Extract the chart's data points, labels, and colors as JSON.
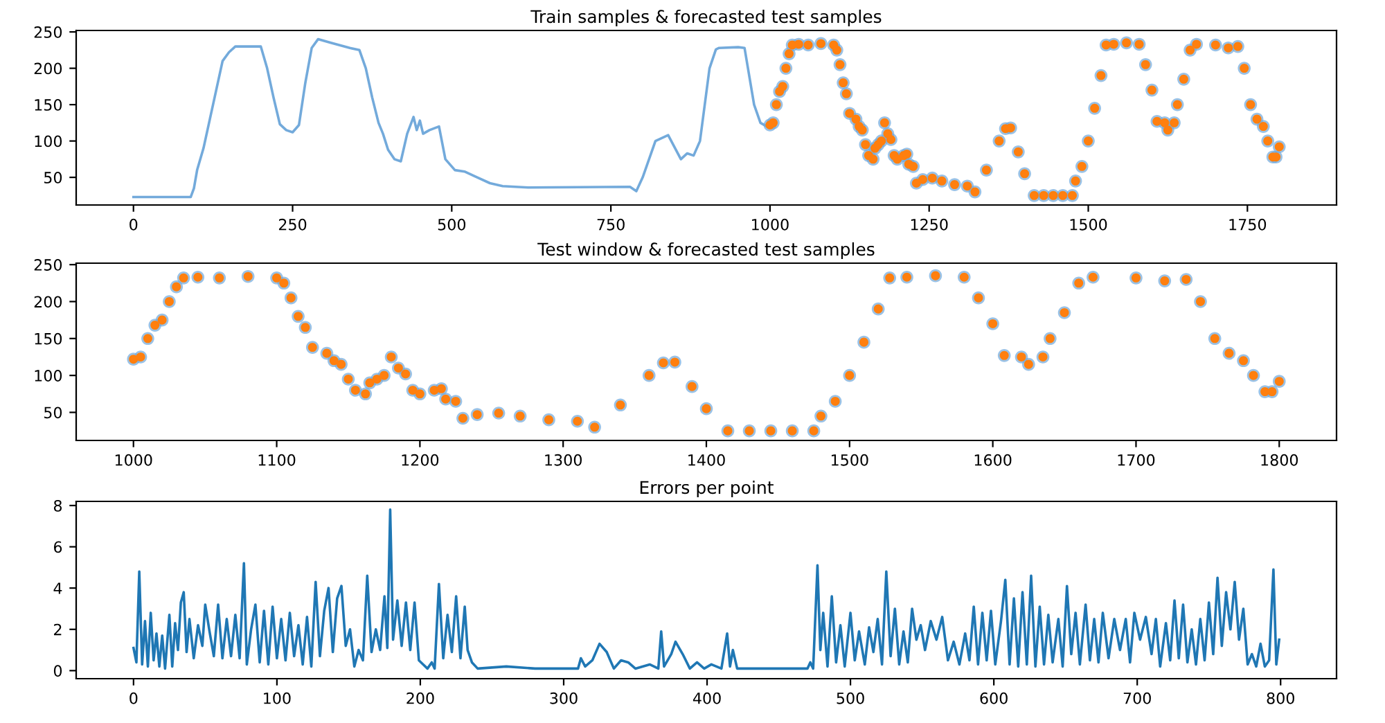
{
  "chart_data": [
    {
      "type": "line",
      "title": "Train samples & forecasted test samples",
      "xlim": [
        -90,
        1890
      ],
      "xticks": [
        0,
        250,
        500,
        750,
        1000,
        1250,
        1500,
        1750
      ],
      "ylim": [
        12,
        252
      ],
      "yticks": [
        50,
        100,
        150,
        200,
        250
      ],
      "grid": false,
      "series": [
        {
          "color": "#5b9bd5",
          "x": [
            0,
            90,
            95,
            100,
            110,
            120,
            130,
            140,
            150,
            160,
            200,
            210,
            220,
            230,
            240,
            250,
            260,
            270,
            280,
            290,
            310,
            340,
            355,
            365,
            375,
            385,
            392,
            400,
            410,
            420,
            430,
            440,
            445,
            450,
            455,
            465,
            480,
            490,
            505,
            520,
            540,
            560,
            580,
            620,
            780,
            790,
            800,
            820,
            840,
            860,
            870,
            880,
            890,
            905,
            915,
            920,
            950,
            960,
            975,
            985,
            995,
            1000
          ],
          "values": [
            23,
            23,
            35,
            60,
            90,
            130,
            170,
            210,
            222,
            230,
            230,
            200,
            160,
            123,
            115,
            112,
            122,
            180,
            228,
            240,
            235,
            228,
            225,
            200,
            160,
            125,
            110,
            88,
            75,
            72,
            110,
            133,
            115,
            128,
            110,
            115,
            120,
            75,
            60,
            58,
            50,
            42,
            38,
            36,
            37,
            31,
            50,
            100,
            108,
            75,
            83,
            80,
            100,
            200,
            226,
            228,
            229,
            228,
            150,
            125,
            120,
            122
          ]
        },
        {
          "type": "scatter",
          "color": "#6fa8dc",
          "marker": "circle",
          "x": [
            1000,
            1005,
            1010,
            1015,
            1020,
            1025,
            1030,
            1035,
            1045,
            1060,
            1080,
            1100,
            1105,
            1110,
            1115,
            1120,
            1125,
            1135,
            1140,
            1145,
            1150,
            1155,
            1162,
            1165,
            1170,
            1175,
            1180,
            1185,
            1190,
            1195,
            1200,
            1210,
            1215,
            1218,
            1225,
            1230,
            1240,
            1255,
            1270,
            1290,
            1310,
            1322,
            1340,
            1360,
            1370,
            1378,
            1390,
            1400,
            1415,
            1430,
            1445,
            1460,
            1475,
            1480,
            1490,
            1500,
            1510,
            1520,
            1528,
            1540,
            1560,
            1580,
            1590,
            1600,
            1608,
            1620,
            1625,
            1635,
            1640,
            1650,
            1660,
            1670,
            1700,
            1720,
            1735,
            1745,
            1755,
            1765,
            1775,
            1782,
            1790,
            1795,
            1800
          ],
          "values": [
            122,
            125,
            150,
            168,
            175,
            200,
            220,
            232,
            233,
            232,
            234,
            232,
            225,
            205,
            180,
            165,
            138,
            130,
            120,
            115,
            95,
            80,
            75,
            90,
            95,
            100,
            125,
            110,
            102,
            80,
            75,
            80,
            82,
            68,
            65,
            42,
            47,
            49,
            45,
            40,
            38,
            30,
            60,
            100,
            117,
            118,
            85,
            55,
            25,
            25,
            25,
            25,
            25,
            45,
            65,
            100,
            145,
            190,
            232,
            233,
            235,
            233,
            205,
            170,
            127,
            125,
            115,
            125,
            150,
            185,
            225,
            233,
            232,
            228,
            230,
            200,
            150,
            130,
            120,
            100,
            78,
            78,
            92
          ]
        },
        {
          "type": "scatter",
          "color": "#ff7f0e",
          "marker": "circle",
          "x": [
            1000,
            1005,
            1010,
            1015,
            1020,
            1025,
            1030,
            1035,
            1045,
            1060,
            1080,
            1100,
            1105,
            1110,
            1115,
            1120,
            1125,
            1135,
            1140,
            1145,
            1150,
            1155,
            1162,
            1165,
            1170,
            1175,
            1180,
            1185,
            1190,
            1195,
            1200,
            1210,
            1215,
            1218,
            1225,
            1230,
            1240,
            1255,
            1270,
            1290,
            1310,
            1322,
            1340,
            1360,
            1370,
            1378,
            1390,
            1400,
            1415,
            1430,
            1445,
            1460,
            1475,
            1480,
            1490,
            1500,
            1510,
            1520,
            1528,
            1540,
            1560,
            1580,
            1590,
            1600,
            1608,
            1620,
            1625,
            1635,
            1640,
            1650,
            1660,
            1670,
            1700,
            1720,
            1735,
            1745,
            1755,
            1765,
            1775,
            1782,
            1790,
            1795,
            1800
          ],
          "values": [
            122,
            125,
            150,
            168,
            175,
            200,
            220,
            232,
            233,
            232,
            234,
            232,
            225,
            205,
            180,
            165,
            138,
            130,
            120,
            115,
            95,
            80,
            75,
            90,
            95,
            100,
            125,
            110,
            102,
            80,
            75,
            80,
            82,
            68,
            65,
            42,
            47,
            49,
            45,
            40,
            38,
            30,
            60,
            100,
            117,
            118,
            85,
            55,
            25,
            25,
            25,
            25,
            25,
            45,
            65,
            100,
            145,
            190,
            232,
            233,
            235,
            233,
            205,
            170,
            127,
            125,
            115,
            125,
            150,
            185,
            225,
            233,
            232,
            228,
            230,
            200,
            150,
            130,
            120,
            100,
            78,
            78,
            92
          ]
        }
      ]
    },
    {
      "type": "scatter",
      "title": "Test window & forecasted test samples",
      "xlim": [
        960,
        1840
      ],
      "xticks": [
        1000,
        1100,
        1200,
        1300,
        1400,
        1500,
        1600,
        1700,
        1800
      ],
      "ylim": [
        12,
        252
      ],
      "yticks": [
        50,
        100,
        150,
        200,
        250
      ],
      "grid": false,
      "series": [
        {
          "color": "#6fa8dc",
          "marker": "circle",
          "x": [
            1000,
            1005,
            1010,
            1015,
            1020,
            1025,
            1030,
            1035,
            1045,
            1060,
            1080,
            1100,
            1105,
            1110,
            1115,
            1120,
            1125,
            1135,
            1140,
            1145,
            1150,
            1155,
            1162,
            1165,
            1170,
            1175,
            1180,
            1185,
            1190,
            1195,
            1200,
            1210,
            1215,
            1218,
            1225,
            1230,
            1240,
            1255,
            1270,
            1290,
            1310,
            1322,
            1340,
            1360,
            1370,
            1378,
            1390,
            1400,
            1415,
            1430,
            1445,
            1460,
            1475,
            1480,
            1490,
            1500,
            1510,
            1520,
            1528,
            1540,
            1560,
            1580,
            1590,
            1600,
            1608,
            1620,
            1625,
            1635,
            1640,
            1650,
            1660,
            1670,
            1700,
            1720,
            1735,
            1745,
            1755,
            1765,
            1775,
            1782,
            1790,
            1795,
            1800
          ],
          "values": [
            122,
            125,
            150,
            168,
            175,
            200,
            220,
            232,
            233,
            232,
            234,
            232,
            225,
            205,
            180,
            165,
            138,
            130,
            120,
            115,
            95,
            80,
            75,
            90,
            95,
            100,
            125,
            110,
            102,
            80,
            75,
            80,
            82,
            68,
            65,
            42,
            47,
            49,
            45,
            40,
            38,
            30,
            60,
            100,
            117,
            118,
            85,
            55,
            25,
            25,
            25,
            25,
            25,
            45,
            65,
            100,
            145,
            190,
            232,
            233,
            235,
            233,
            205,
            170,
            127,
            125,
            115,
            125,
            150,
            185,
            225,
            233,
            232,
            228,
            230,
            200,
            150,
            130,
            120,
            100,
            78,
            78,
            92
          ]
        },
        {
          "color": "#ff7f0e",
          "marker": "circle",
          "x": [
            1000,
            1005,
            1010,
            1015,
            1020,
            1025,
            1030,
            1035,
            1045,
            1060,
            1080,
            1100,
            1105,
            1110,
            1115,
            1120,
            1125,
            1135,
            1140,
            1145,
            1150,
            1155,
            1162,
            1165,
            1170,
            1175,
            1180,
            1185,
            1190,
            1195,
            1200,
            1210,
            1215,
            1218,
            1225,
            1230,
            1240,
            1255,
            1270,
            1290,
            1310,
            1322,
            1340,
            1360,
            1370,
            1378,
            1390,
            1400,
            1415,
            1430,
            1445,
            1460,
            1475,
            1480,
            1490,
            1500,
            1510,
            1520,
            1528,
            1540,
            1560,
            1580,
            1590,
            1600,
            1608,
            1620,
            1625,
            1635,
            1640,
            1650,
            1660,
            1670,
            1700,
            1720,
            1735,
            1745,
            1755,
            1765,
            1775,
            1782,
            1790,
            1795,
            1800
          ],
          "values": [
            122,
            125,
            150,
            168,
            175,
            200,
            220,
            232,
            233,
            232,
            234,
            232,
            225,
            205,
            180,
            165,
            138,
            130,
            120,
            115,
            95,
            80,
            75,
            90,
            95,
            100,
            125,
            110,
            102,
            80,
            75,
            80,
            82,
            68,
            65,
            42,
            47,
            49,
            45,
            40,
            38,
            30,
            60,
            100,
            117,
            118,
            85,
            55,
            25,
            25,
            25,
            25,
            25,
            45,
            65,
            100,
            145,
            190,
            232,
            233,
            235,
            233,
            205,
            170,
            127,
            125,
            115,
            125,
            150,
            185,
            225,
            233,
            232,
            228,
            230,
            200,
            150,
            130,
            120,
            100,
            78,
            78,
            92
          ]
        }
      ]
    },
    {
      "type": "line",
      "title": "Errors per point",
      "xlim": [
        -40,
        839
      ],
      "xticks": [
        0,
        100,
        200,
        300,
        400,
        500,
        600,
        700,
        800
      ],
      "ylim": [
        -0.39,
        8.2
      ],
      "yticks": [
        0,
        2,
        4,
        6,
        8
      ],
      "grid": false,
      "series": [
        {
          "color": "#1f77b4",
          "x": [
            0,
            2,
            4,
            6,
            8,
            10,
            12,
            14,
            16,
            18,
            20,
            22,
            25,
            27,
            29,
            31,
            33,
            35,
            37,
            39,
            42,
            45,
            48,
            50,
            53,
            56,
            59,
            62,
            65,
            68,
            71,
            74,
            77,
            79,
            82,
            85,
            88,
            91,
            94,
            97,
            100,
            103,
            106,
            109,
            112,
            115,
            118,
            121,
            124,
            127,
            130,
            133,
            136,
            139,
            142,
            145,
            148,
            151,
            154,
            157,
            160,
            163,
            166,
            169,
            172,
            175,
            177,
            179,
            181,
            184,
            187,
            190,
            193,
            196,
            199,
            202,
            205,
            208,
            210,
            213,
            216,
            219,
            222,
            225,
            228,
            231,
            233,
            236,
            240,
            260,
            280,
            310,
            312,
            315,
            320,
            325,
            330,
            335,
            340,
            345,
            350,
            360,
            366,
            368,
            370,
            375,
            378,
            383,
            388,
            393,
            398,
            403,
            410,
            414,
            416,
            418,
            421,
            470,
            472,
            474,
            477,
            479,
            481,
            484,
            487,
            490,
            493,
            496,
            500,
            503,
            506,
            510,
            513,
            516,
            519,
            522,
            525,
            528,
            531,
            534,
            537,
            540,
            543,
            546,
            549,
            552,
            556,
            560,
            564,
            568,
            572,
            576,
            580,
            583,
            586,
            589,
            592,
            595,
            598,
            601,
            605,
            608,
            611,
            614,
            617,
            620,
            623,
            626,
            629,
            632,
            635,
            638,
            641,
            645,
            648,
            651,
            654,
            657,
            660,
            664,
            667,
            670,
            673,
            676,
            680,
            684,
            688,
            692,
            695,
            698,
            702,
            706,
            710,
            713,
            716,
            720,
            723,
            726,
            729,
            732,
            735,
            738,
            741,
            744,
            747,
            750,
            753,
            756,
            759,
            762,
            765,
            768,
            771,
            774,
            777,
            780,
            783,
            786,
            789,
            792,
            795,
            797,
            799
          ],
          "values": [
            1.1,
            0.4,
            4.8,
            0.3,
            2.4,
            0.2,
            2.8,
            0.5,
            1.8,
            0.2,
            1.7,
            0.1,
            2.7,
            0.2,
            2.3,
            1.0,
            3.3,
            3.8,
            0.9,
            2.5,
            0.6,
            2.2,
            1.2,
            3.2,
            1.9,
            0.7,
            3.2,
            0.6,
            2.5,
            0.7,
            2.7,
            0.6,
            5.2,
            0.3,
            2.0,
            3.2,
            0.4,
            2.9,
            0.3,
            3.1,
            0.6,
            2.5,
            0.5,
            2.8,
            0.7,
            2.2,
            0.3,
            2.6,
            0.2,
            4.3,
            0.7,
            2.9,
            4.0,
            0.9,
            3.5,
            4.1,
            1.2,
            2.0,
            0.2,
            1.0,
            0.5,
            4.6,
            0.9,
            2.0,
            1.0,
            3.6,
            1.1,
            7.8,
            1.5,
            3.4,
            1.2,
            3.3,
            1.0,
            3.3,
            0.5,
            0.3,
            0.1,
            0.4,
            0.1,
            4.2,
            0.6,
            2.7,
            0.9,
            3.6,
            0.6,
            3.1,
            1.0,
            0.4,
            0.1,
            0.2,
            0.1,
            0.1,
            0.6,
            0.2,
            0.5,
            1.3,
            0.9,
            0.1,
            0.5,
            0.4,
            0.1,
            0.3,
            0.1,
            1.9,
            0.2,
            0.8,
            1.4,
            0.8,
            0.1,
            0.4,
            0.1,
            0.3,
            0.1,
            1.8,
            0.2,
            1.0,
            0.1,
            0.1,
            0.4,
            0.1,
            5.1,
            1.0,
            2.8,
            0.2,
            3.6,
            0.4,
            2.2,
            0.2,
            2.8,
            0.5,
            1.9,
            0.3,
            2.1,
            0.9,
            2.5,
            0.3,
            4.8,
            0.7,
            3.0,
            0.3,
            1.9,
            0.4,
            3.0,
            1.5,
            2.2,
            1.0,
            2.4,
            1.5,
            2.6,
            0.5,
            1.4,
            0.3,
            1.8,
            0.5,
            3.1,
            0.3,
            2.8,
            0.5,
            2.9,
            0.3,
            2.4,
            4.4,
            0.3,
            3.5,
            0.2,
            3.8,
            0.3,
            4.6,
            0.2,
            3.1,
            0.3,
            2.7,
            0.4,
            2.5,
            0.2,
            4.1,
            0.8,
            2.8,
            0.3,
            3.2,
            0.5,
            2.5,
            0.4,
            2.8,
            0.6,
            2.5,
            1.0,
            2.5,
            0.4,
            2.8,
            1.5,
            2.6,
            0.8,
            2.5,
            0.2,
            2.3,
            0.5,
            3.4,
            0.6,
            3.2,
            0.4,
            2.0,
            0.3,
            2.5,
            0.5,
            3.3,
            0.8,
            4.5,
            1.2,
            3.8,
            2.0,
            4.3,
            1.5,
            3.0,
            0.3,
            0.8,
            0.2,
            1.3,
            0.2,
            0.5,
            4.9,
            0.3,
            1.5
          ]
        }
      ]
    }
  ]
}
